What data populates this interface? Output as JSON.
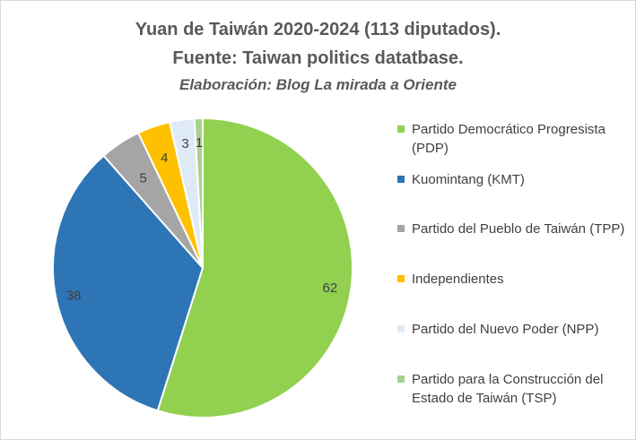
{
  "title": "Yuan de Taiwán 2020-2024 (113 diputados).",
  "subtitle": "Fuente: Taiwan politics datatbase.",
  "credit": "Elaboración: Blog La mirada a Oriente",
  "colors": {
    "pdp": "#92d050",
    "kmt": "#2e75b6",
    "tpp": "#a5a5a5",
    "ind": "#ffc000",
    "npp": "#deebf7",
    "tsp": "#a9d18e"
  },
  "chart_data": {
    "type": "pie",
    "title": "Yuan de Taiwán 2020-2024 (113 diputados).",
    "legend_position": "right",
    "slices": [
      {
        "label": "Partido Democrático Progresista (PDP)",
        "value": 62,
        "color": "#92d050"
      },
      {
        "label": "Kuomintang (KMT)",
        "value": 38,
        "color": "#2e75b6"
      },
      {
        "label": "Partido del Pueblo de Taiwán (TPP)",
        "value": 5,
        "color": "#a5a5a5"
      },
      {
        "label": "Independientes",
        "value": 4,
        "color": "#ffc000"
      },
      {
        "label": "Partido del Nuevo Poder (NPP)",
        "value": 3,
        "color": "#deebf7"
      },
      {
        "label": "Partido para la Construcción del Estado de Taiwán (TSP)",
        "value": 1,
        "color": "#a9d18e"
      }
    ]
  }
}
